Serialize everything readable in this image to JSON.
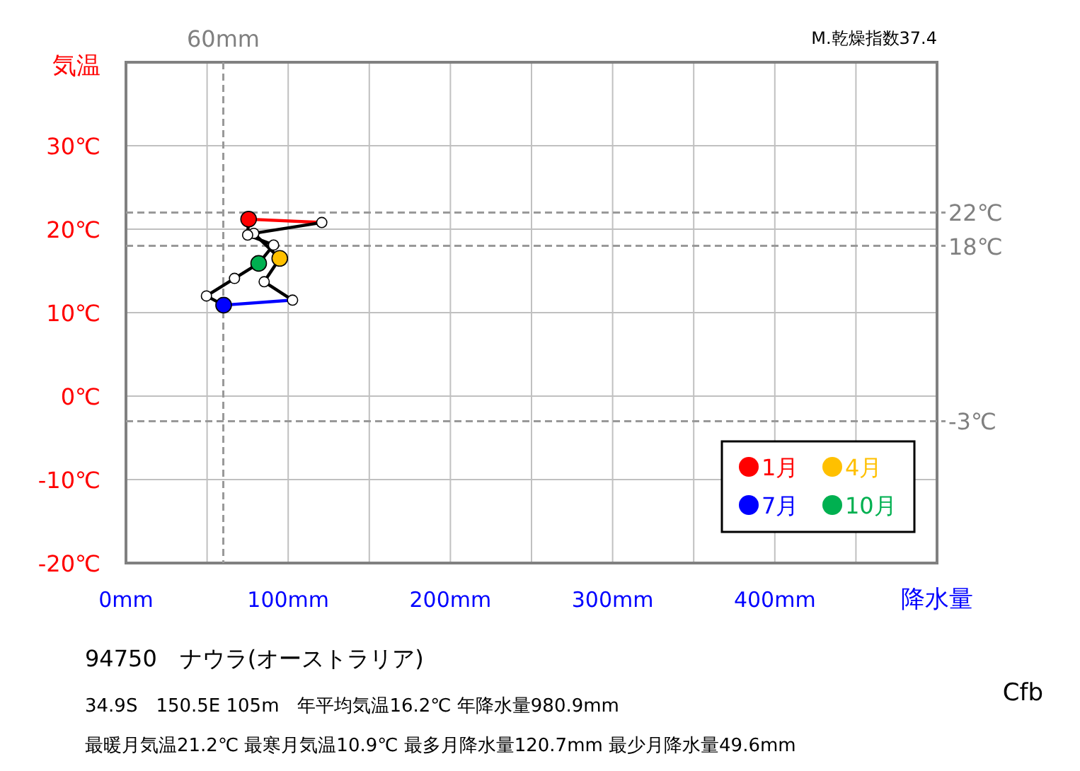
{
  "chart_data": {
    "type": "line",
    "ylabel": "気温",
    "xlabel": "降水量",
    "xlim": [
      0,
      500
    ],
    "ylim": [
      -20,
      40
    ],
    "xticks": [
      {
        "value": 0,
        "label": "0mm"
      },
      {
        "value": 50,
        "label": null
      },
      {
        "value": 100,
        "label": "100mm"
      },
      {
        "value": 150,
        "label": null
      },
      {
        "value": 200,
        "label": "200mm"
      },
      {
        "value": 250,
        "label": null
      },
      {
        "value": 300,
        "label": "300mm"
      },
      {
        "value": 350,
        "label": null
      },
      {
        "value": 400,
        "label": "400mm"
      },
      {
        "value": 450,
        "label": null
      }
    ],
    "yticks": [
      {
        "value": -20,
        "label": "-20℃"
      },
      {
        "value": -10,
        "label": "-10℃"
      },
      {
        "value": 0,
        "label": "0℃"
      },
      {
        "value": 10,
        "label": "10℃"
      },
      {
        "value": 20,
        "label": "20℃"
      },
      {
        "value": 30,
        "label": "30℃"
      }
    ],
    "grid": true,
    "legend": "bottom right",
    "line_style": "solid",
    "series": [
      {
        "type": "line",
        "marker": "none",
        "color": "#ff0000",
        "x": [
          75.6,
          120.7
        ],
        "values": [
          21.2,
          20.8
        ]
      },
      {
        "type": "line",
        "marker": "none",
        "color": "#000000",
        "x": [
          120.7,
          78.8,
          94.8,
          85.2,
          102.7
        ],
        "values": [
          20.8,
          19.5,
          16.5,
          13.7,
          11.5
        ]
      },
      {
        "type": "line",
        "marker": "none",
        "color": "#0000ff",
        "x": [
          102.7,
          60.2
        ],
        "values": [
          11.5,
          10.9
        ]
      },
      {
        "type": "line",
        "marker": "none",
        "color": "#000000",
        "x": [
          60.2,
          49.6,
          66.9,
          81.8,
          91.0,
          75.0,
          75.6
        ],
        "values": [
          10.9,
          12.0,
          14.1,
          15.9,
          18.1,
          19.3,
          21.2
        ]
      },
      {
        "type": "scatter",
        "marker": "circle",
        "color": "#ffffff",
        "x": [
          120.7,
          78.8,
          85.2,
          102.7,
          49.6,
          66.9,
          91.0,
          75.0
        ],
        "values": [
          20.8,
          19.5,
          13.7,
          11.5,
          12.0,
          14.1,
          18.1,
          19.3
        ]
      },
      {
        "type": "scatter",
        "marker": "circle",
        "name": "1月",
        "color": "#ff0000",
        "x": [
          75.6
        ],
        "values": [
          21.2
        ]
      },
      {
        "type": "scatter",
        "marker": "circle",
        "name": "4月",
        "color": "#ffc000",
        "x": [
          94.8
        ],
        "values": [
          16.5
        ]
      },
      {
        "type": "scatter",
        "marker": "circle",
        "name": "7月",
        "color": "#0000ff",
        "x": [
          60.2
        ],
        "values": [
          10.9
        ]
      },
      {
        "type": "scatter",
        "marker": "circle",
        "name": "10月",
        "color": "#00b050",
        "x": [
          81.8
        ],
        "values": [
          15.9
        ]
      }
    ],
    "ref_lines": [
      {
        "axis": "x",
        "value": 60,
        "label": "60mm"
      },
      {
        "axis": "y",
        "value": 22,
        "label": "22℃"
      },
      {
        "axis": "y",
        "value": 18,
        "label": "18℃"
      },
      {
        "axis": "y",
        "value": -3,
        "label": "-3℃"
      }
    ],
    "annotations": [
      "M.乾燥指数37.4",
      "94750　ナウラ(オーストラリア)",
      "34.9S　150.5E 105m　年平均気温16.2℃ 年降水量980.9mm",
      "最暖月気温21.2℃ 最寒月気温10.9℃ 最多月降水量120.7mm 最少月降水量49.6mm",
      "Cfb"
    ]
  }
}
